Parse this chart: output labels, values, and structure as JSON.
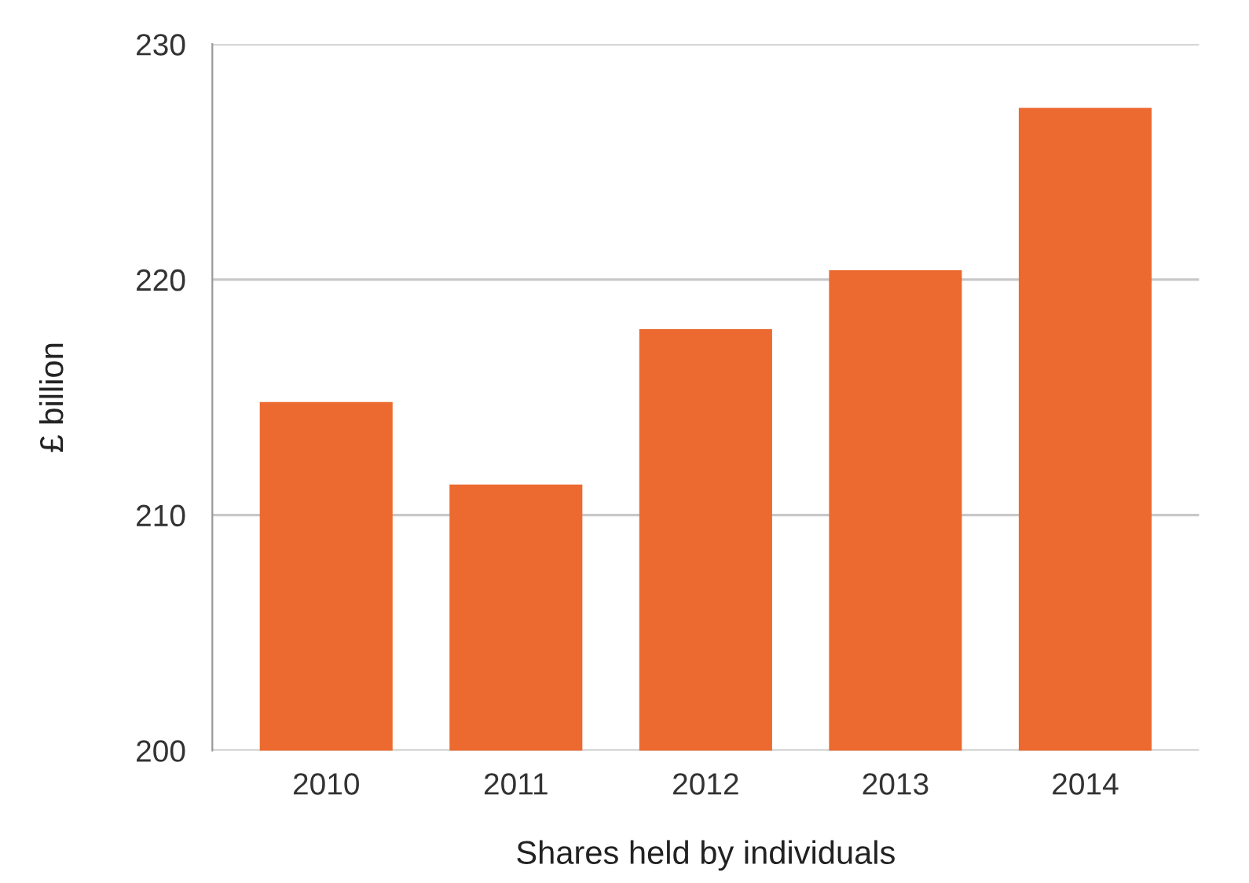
{
  "chart_data": {
    "type": "bar",
    "xlabel": "Shares held by individuals",
    "ylabel": "£ billion",
    "categories": [
      "2010",
      "2011",
      "2012",
      "2013",
      "2014"
    ],
    "values": [
      214.8,
      211.3,
      217.9,
      220.4,
      227.3
    ],
    "color": "#ec6a30",
    "ylim": [
      200,
      230
    ],
    "yticks": [
      200,
      210,
      220,
      230
    ],
    "grid": "y"
  }
}
